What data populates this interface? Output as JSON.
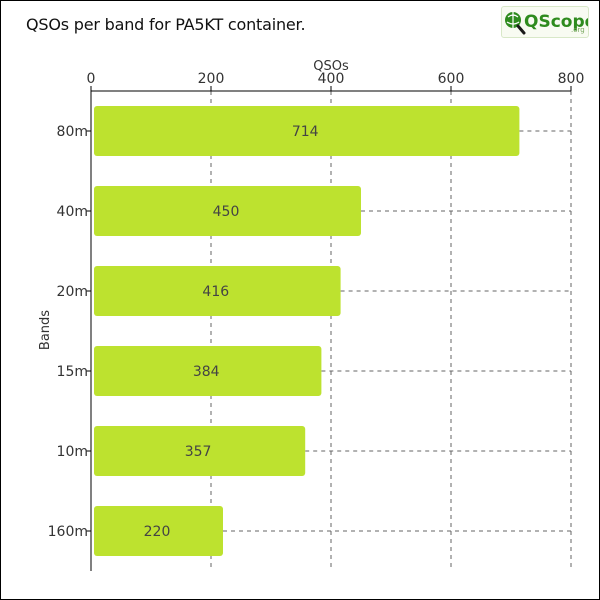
{
  "title": "QSOs per band for PA5KT container.",
  "logo": {
    "text": "QScope",
    "suffix": ".org"
  },
  "colors": {
    "bar": "#bde22f",
    "bar_text": "#444444",
    "grid": "#666666",
    "logo_green": "#2e8b1e"
  },
  "chart_data": {
    "type": "bar",
    "orientation": "horizontal",
    "title": "QSOs per band for PA5KT container.",
    "xlabel": "QSOs",
    "ylabel": "Bands",
    "categories": [
      "80m",
      "40m",
      "20m",
      "15m",
      "10m",
      "160m"
    ],
    "values": [
      714,
      450,
      416,
      384,
      357,
      220
    ],
    "xlim": [
      0,
      800
    ],
    "xticks": [
      0,
      200,
      400,
      600,
      800
    ],
    "x_axis_position": "top",
    "grid": true,
    "data_labels": true
  }
}
